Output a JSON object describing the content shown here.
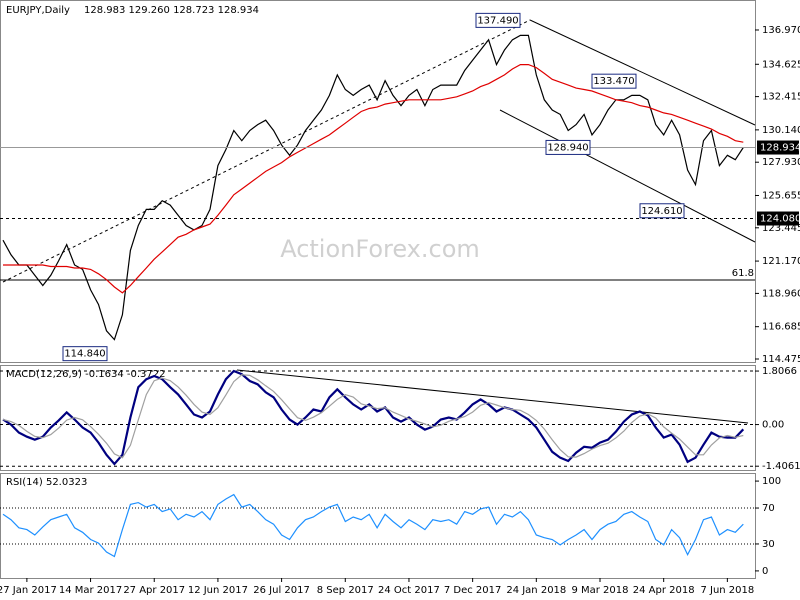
{
  "chart_data": [
    {
      "type": "line",
      "title": "EURJPY,Daily",
      "subtitle": "128.983 129.260 128.723 128.934",
      "watermark": "ActionForex.com",
      "ylim": [
        114.27,
        139.02
      ],
      "yticks": [
        {
          "value": 136.97,
          "label": "136.970"
        },
        134.625,
        132.415,
        {
          "value": 130.14,
          "label": "130.140"
        },
        {
          "value": 127.93,
          "label": "127.930"
        },
        125.655,
        123.445,
        {
          "value": 121.17,
          "label": "121.170"
        },
        {
          "value": 118.96,
          "label": "118.960"
        },
        116.685,
        114.475
      ],
      "series": [
        {
          "name": "EURJPY",
          "color": "#000000",
          "values": [
            122.6,
            121.6,
            120.9,
            120.9,
            120.2,
            119.5,
            120.2,
            121.2,
            122.3,
            120.9,
            120.6,
            119.2,
            118.2,
            116.4,
            115.8,
            117.5,
            121.9,
            123.6,
            124.7,
            124.7,
            125.3,
            125.0,
            124.3,
            123.6,
            123.3,
            123.6,
            124.7,
            127.7,
            128.8,
            130.1,
            129.4,
            130.1,
            130.5,
            130.8,
            130.1,
            129.1,
            128.4,
            129.1,
            130.1,
            130.8,
            131.5,
            132.5,
            133.9,
            132.9,
            132.5,
            132.9,
            133.2,
            132.2,
            133.5,
            132.5,
            131.8,
            132.5,
            132.9,
            131.8,
            132.9,
            133.2,
            133.2,
            133.2,
            134.2,
            134.9,
            135.6,
            136.3,
            134.6,
            135.6,
            136.3,
            136.6,
            136.6,
            133.9,
            132.2,
            131.5,
            131.2,
            130.1,
            130.5,
            131.2,
            129.8,
            130.5,
            131.5,
            132.2,
            132.2,
            132.5,
            132.5,
            132.2,
            130.5,
            129.8,
            130.8,
            129.8,
            127.4,
            126.4,
            129.4,
            130.1,
            127.7,
            128.4,
            128.1,
            128.934
          ]
        },
        {
          "name": "MA",
          "color": "#e00000",
          "values": [
            120.9,
            120.9,
            120.9,
            120.9,
            120.9,
            120.9,
            120.8,
            120.8,
            120.8,
            120.7,
            120.7,
            120.6,
            120.3,
            119.9,
            119.4,
            119.0,
            119.5,
            120.1,
            120.7,
            121.3,
            121.8,
            122.3,
            122.8,
            123.0,
            123.3,
            123.5,
            123.7,
            124.3,
            125.0,
            125.7,
            126.1,
            126.5,
            126.9,
            127.3,
            127.6,
            127.9,
            128.3,
            128.6,
            128.9,
            129.2,
            129.5,
            129.8,
            130.2,
            130.6,
            131.0,
            131.4,
            131.6,
            131.7,
            131.9,
            132.0,
            132.1,
            132.2,
            132.2,
            132.2,
            132.2,
            132.2,
            132.3,
            132.4,
            132.6,
            132.8,
            133.1,
            133.3,
            133.6,
            133.9,
            134.3,
            134.6,
            134.6,
            134.4,
            134.0,
            133.6,
            133.4,
            133.2,
            133.0,
            132.9,
            132.8,
            132.6,
            132.4,
            132.2,
            132.1,
            132.0,
            131.8,
            131.7,
            131.5,
            131.3,
            131.2,
            131.0,
            130.8,
            130.6,
            130.4,
            130.2,
            129.9,
            129.7,
            129.4,
            129.3
          ]
        }
      ],
      "annotations": [
        {
          "value": 137.49,
          "label": "137.490"
        },
        {
          "value": 133.47,
          "label": "133.470"
        },
        {
          "value": 128.94,
          "label": "128.940"
        },
        {
          "value": 124.61,
          "label": "124.610"
        },
        {
          "value": 114.84,
          "label": "114.840"
        }
      ],
      "last_price": 128.934,
      "level": {
        "value": 124.08,
        "label": "124.080"
      },
      "fib_label": "61.8"
    },
    {
      "type": "line",
      "title": "MACD(12,26,9) -0.1634 -0.3722",
      "ylim": [
        -1.568,
        2.011
      ],
      "yticks": [
        1.8066,
        {
          "value": 0,
          "label": "0.00"
        },
        -1.4061
      ],
      "grid": "dashed",
      "series": [
        {
          "name": "MACD",
          "color": "#000080",
          "values": [
            0.17,
            0,
            -0.27,
            -0.41,
            -0.51,
            -0.41,
            -0.1,
            0.14,
            0.41,
            0.17,
            -0.1,
            -0.27,
            -0.61,
            -1.02,
            -1.33,
            -1.02,
            0.24,
            1.26,
            1.53,
            1.64,
            1.53,
            1.26,
            1.02,
            0.68,
            0.34,
            0.24,
            0.44,
            1.02,
            1.53,
            1.81,
            1.7,
            1.47,
            1.36,
            1.09,
            0.92,
            0.51,
            0.17,
            0,
            0.24,
            0.51,
            0.44,
            0.92,
            1.19,
            0.92,
            0.68,
            0.51,
            0.68,
            0.44,
            0.58,
            0.24,
            0.1,
            0.24,
            0,
            -0.17,
            -0.07,
            0.17,
            0.24,
            0.17,
            0.41,
            0.68,
            0.85,
            0.68,
            0.44,
            0.58,
            0.51,
            0.34,
            0.17,
            -0.1,
            -0.51,
            -0.92,
            -1.12,
            -1.23,
            -0.95,
            -0.75,
            -0.78,
            -0.61,
            -0.51,
            -0.24,
            0.1,
            0.34,
            0.44,
            0.31,
            -0.1,
            -0.44,
            -0.34,
            -0.68,
            -1.26,
            -1.12,
            -0.68,
            -0.27,
            -0.41,
            -0.44,
            -0.44,
            -0.16
          ]
        },
        {
          "name": "Signal",
          "color": "#a0a0a0",
          "values": [
            0.17,
            0.1,
            -0.03,
            -0.23,
            -0.4,
            -0.44,
            -0.34,
            -0.12,
            0.15,
            0.24,
            0.16,
            -0.07,
            -0.33,
            -0.63,
            -0.99,
            -1.12,
            -0.7,
            0.16,
            1.01,
            1.48,
            1.57,
            1.48,
            1.27,
            0.99,
            0.68,
            0.42,
            0.34,
            0.57,
            1.0,
            1.45,
            1.68,
            1.66,
            1.51,
            1.31,
            1.12,
            0.84,
            0.53,
            0.23,
            0.14,
            0.25,
            0.4,
            0.62,
            0.85,
            1.01,
            0.93,
            0.7,
            0.62,
            0.54,
            0.57,
            0.42,
            0.31,
            0.19,
            0.11,
            0.02,
            -0.08,
            -0.02,
            0.11,
            0.19,
            0.27,
            0.42,
            0.65,
            0.74,
            0.66,
            0.57,
            0.51,
            0.48,
            0.34,
            0.14,
            -0.15,
            -0.51,
            -0.85,
            -1.09,
            -1.1,
            -0.98,
            -0.83,
            -0.71,
            -0.63,
            -0.45,
            -0.22,
            0.07,
            0.29,
            0.36,
            0.22,
            -0.08,
            -0.29,
            -0.49,
            -0.76,
            -1.02,
            -1.02,
            -0.69,
            -0.45,
            -0.37,
            -0.43,
            -0.37
          ]
        }
      ]
    },
    {
      "type": "line",
      "title": "RSI(14) 52.0323",
      "ylim": [
        -7.9,
        109
      ],
      "yticks": [
        100,
        70,
        30,
        0
      ],
      "grid": "dotted",
      "categories": [
        null,
        null,
        null,
        "27 Jan 2017",
        null,
        null,
        null,
        null,
        null,
        null,
        null,
        "14 Mar 2017",
        null,
        null,
        null,
        null,
        null,
        null,
        null,
        "27 Apr 2017",
        null,
        null,
        null,
        null,
        null,
        null,
        null,
        "12 Jun 2017",
        null,
        null,
        null,
        null,
        null,
        null,
        null,
        "26 Jul 2017",
        null,
        null,
        null,
        null,
        null,
        null,
        null,
        "8 Sep 2017",
        null,
        null,
        null,
        null,
        null,
        null,
        null,
        "24 Oct 2017",
        null,
        null,
        null,
        null,
        null,
        null,
        null,
        "7 Dec 2017",
        null,
        null,
        null,
        null,
        null,
        null,
        null,
        "24 Jan 2018",
        null,
        null,
        null,
        null,
        null,
        null,
        null,
        "9 Mar 2018",
        null,
        null,
        null,
        null,
        null,
        null,
        null,
        "24 Apr 2018",
        null,
        null,
        null,
        null,
        null,
        null,
        null,
        "7 Jun 2018",
        null,
        null
      ],
      "series": [
        {
          "name": "RSI",
          "color": "#1e90ff",
          "values": [
            63,
            57,
            48,
            46,
            40,
            49,
            57,
            60,
            63,
            48,
            43,
            35,
            31,
            21,
            16,
            46,
            74,
            76,
            71,
            74,
            66,
            69,
            57,
            63,
            60,
            66,
            57,
            74,
            80,
            85,
            71,
            74,
            66,
            57,
            52,
            40,
            35,
            48,
            57,
            60,
            66,
            71,
            74,
            55,
            60,
            57,
            63,
            48,
            63,
            55,
            48,
            57,
            52,
            46,
            57,
            55,
            57,
            52,
            66,
            63,
            69,
            71,
            52,
            63,
            60,
            66,
            57,
            40,
            37,
            35,
            29,
            35,
            40,
            46,
            35,
            46,
            52,
            55,
            63,
            66,
            60,
            55,
            35,
            29,
            46,
            37,
            18,
            35,
            57,
            60,
            40,
            46,
            43,
            52
          ]
        }
      ]
    }
  ]
}
